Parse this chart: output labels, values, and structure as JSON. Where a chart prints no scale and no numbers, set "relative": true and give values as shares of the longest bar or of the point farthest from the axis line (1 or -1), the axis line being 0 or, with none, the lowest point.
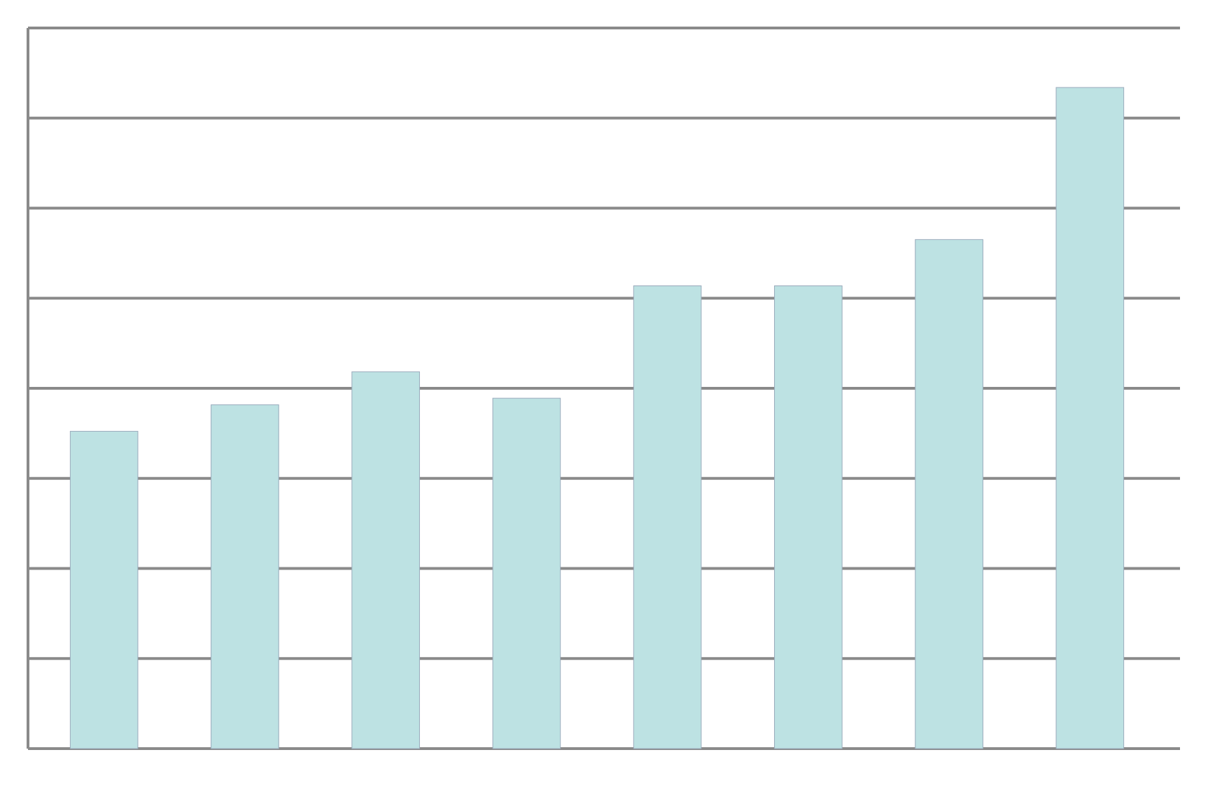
{
  "chart_data": {
    "type": "bar",
    "relative": true,
    "grid": true,
    "color": "#bde2e3",
    "categories": [
      null,
      null,
      null,
      null,
      null,
      null,
      null,
      null
    ],
    "values": [
      0.48,
      0.52,
      0.57,
      0.53,
      0.7,
      0.7,
      0.77,
      1
    ]
  }
}
